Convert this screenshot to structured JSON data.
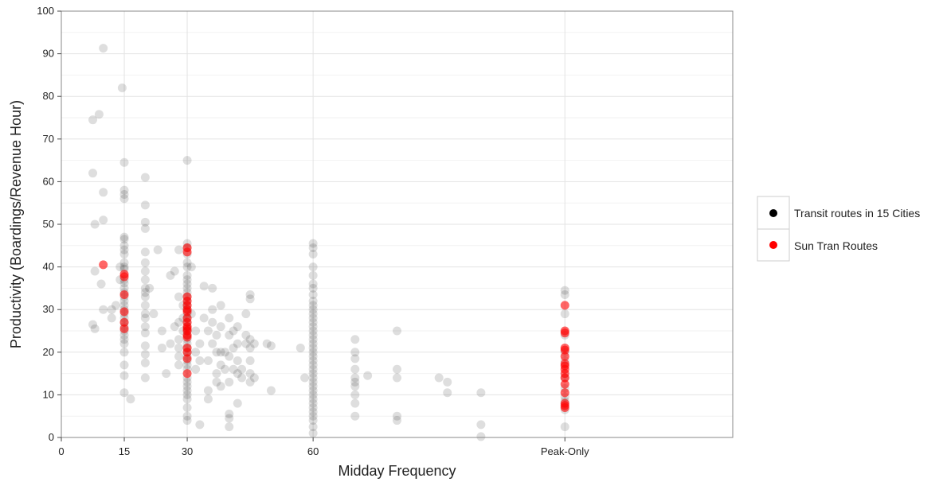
{
  "chart_data": {
    "type": "scatter",
    "title": "",
    "xlabel": "Midday Frequency",
    "ylabel": "Productivity (Boardings/Revenue Hour)",
    "xlim": [
      0,
      160
    ],
    "ylim": [
      0,
      100
    ],
    "x_ticks": [
      {
        "value": 0,
        "label": "0"
      },
      {
        "value": 15,
        "label": "15"
      },
      {
        "value": 30,
        "label": "30"
      },
      {
        "value": 60,
        "label": "60"
      },
      {
        "value": 120,
        "label": "Peak-Only"
      }
    ],
    "y_ticks": [
      0,
      10,
      20,
      30,
      40,
      50,
      60,
      70,
      80,
      90,
      100
    ],
    "grid": true,
    "legend_position": "right",
    "colors": {
      "transit": "#000000",
      "suntran": "#ff0000"
    },
    "series": [
      {
        "name": "Transit routes in 15 Cities",
        "color": "#000000",
        "points": [
          [
            7.5,
            74.5
          ],
          [
            9,
            75.8
          ],
          [
            10,
            91.3
          ],
          [
            7.5,
            62
          ],
          [
            8,
            50
          ],
          [
            10,
            57.5
          ],
          [
            10,
            51
          ],
          [
            8,
            39
          ],
          [
            9.5,
            36
          ],
          [
            10,
            30
          ],
          [
            7.5,
            26.5
          ],
          [
            8,
            25.5
          ],
          [
            12,
            30
          ],
          [
            13,
            31
          ],
          [
            12,
            28
          ],
          [
            14,
            40
          ],
          [
            14,
            37
          ],
          [
            14.5,
            82
          ],
          [
            15,
            64.5
          ],
          [
            15,
            58
          ],
          [
            15,
            57
          ],
          [
            15,
            56
          ],
          [
            15,
            47
          ],
          [
            15,
            46.5
          ],
          [
            15,
            45
          ],
          [
            15,
            44
          ],
          [
            15,
            43
          ],
          [
            15,
            41
          ],
          [
            15,
            40
          ],
          [
            15,
            39.5
          ],
          [
            15,
            37
          ],
          [
            15,
            36.2
          ],
          [
            15,
            35
          ],
          [
            15,
            34
          ],
          [
            15,
            33
          ],
          [
            15,
            32
          ],
          [
            15,
            31
          ],
          [
            15,
            30
          ],
          [
            15,
            29
          ],
          [
            15,
            28
          ],
          [
            15,
            27
          ],
          [
            15,
            26
          ],
          [
            15,
            25
          ],
          [
            15,
            24
          ],
          [
            15,
            23
          ],
          [
            15,
            22
          ],
          [
            15,
            20
          ],
          [
            15,
            17
          ],
          [
            15,
            14.5
          ],
          [
            15,
            10.5
          ],
          [
            16.5,
            9
          ],
          [
            20,
            61
          ],
          [
            20,
            54.5
          ],
          [
            20,
            50.5
          ],
          [
            20,
            49
          ],
          [
            20,
            43.5
          ],
          [
            20,
            41
          ],
          [
            20,
            39
          ],
          [
            20,
            37
          ],
          [
            20,
            35
          ],
          [
            20,
            34
          ],
          [
            20,
            33
          ],
          [
            20,
            31
          ],
          [
            20,
            29
          ],
          [
            20,
            28
          ],
          [
            20,
            26
          ],
          [
            20,
            24.5
          ],
          [
            20,
            21.5
          ],
          [
            20,
            19.5
          ],
          [
            20,
            17.5
          ],
          [
            20,
            14
          ],
          [
            21,
            35
          ],
          [
            22,
            29
          ],
          [
            23,
            44
          ],
          [
            24,
            25
          ],
          [
            24,
            21
          ],
          [
            25,
            15
          ],
          [
            26,
            38
          ],
          [
            26,
            22
          ],
          [
            27,
            39
          ],
          [
            27,
            26
          ],
          [
            28,
            44
          ],
          [
            28,
            33
          ],
          [
            28,
            27
          ],
          [
            28,
            23
          ],
          [
            28,
            21
          ],
          [
            28,
            19
          ],
          [
            28,
            17
          ],
          [
            29,
            31
          ],
          [
            29,
            28
          ],
          [
            29,
            25
          ],
          [
            30,
            65
          ],
          [
            30,
            45.5
          ],
          [
            30,
            44.5
          ],
          [
            30,
            43
          ],
          [
            30,
            41
          ],
          [
            30,
            40
          ],
          [
            30,
            38
          ],
          [
            30,
            37
          ],
          [
            30,
            36
          ],
          [
            30,
            35
          ],
          [
            30,
            34
          ],
          [
            30,
            33
          ],
          [
            30,
            32
          ],
          [
            30,
            31
          ],
          [
            30,
            30
          ],
          [
            30,
            29
          ],
          [
            30,
            28
          ],
          [
            30,
            27
          ],
          [
            30,
            26
          ],
          [
            30,
            25
          ],
          [
            30,
            24
          ],
          [
            30,
            23
          ],
          [
            30,
            22
          ],
          [
            30,
            21
          ],
          [
            30,
            20
          ],
          [
            30,
            19
          ],
          [
            30,
            18
          ],
          [
            30,
            17
          ],
          [
            30,
            16
          ],
          [
            30,
            14
          ],
          [
            30,
            13
          ],
          [
            30,
            12
          ],
          [
            30,
            11
          ],
          [
            30,
            10
          ],
          [
            30,
            9
          ],
          [
            30,
            7
          ],
          [
            30,
            5
          ],
          [
            30,
            4
          ],
          [
            31,
            40
          ],
          [
            31,
            29
          ],
          [
            32,
            25
          ],
          [
            32,
            20
          ],
          [
            32,
            16
          ],
          [
            33,
            22
          ],
          [
            33,
            18
          ],
          [
            33,
            3
          ],
          [
            34,
            35.5
          ],
          [
            34,
            28
          ],
          [
            35,
            25
          ],
          [
            35,
            18
          ],
          [
            35,
            11
          ],
          [
            35,
            9
          ],
          [
            36,
            30
          ],
          [
            36,
            35
          ],
          [
            36,
            27
          ],
          [
            36,
            22
          ],
          [
            37,
            24
          ],
          [
            37,
            20
          ],
          [
            37,
            15
          ],
          [
            37,
            13
          ],
          [
            38,
            31
          ],
          [
            38,
            26
          ],
          [
            38,
            20
          ],
          [
            38,
            17
          ],
          [
            38,
            12
          ],
          [
            39,
            20
          ],
          [
            39,
            16
          ],
          [
            40,
            28
          ],
          [
            40,
            24
          ],
          [
            40,
            19
          ],
          [
            40,
            13
          ],
          [
            40,
            5.5
          ],
          [
            40,
            4.5
          ],
          [
            40,
            2.5
          ],
          [
            41,
            25
          ],
          [
            41,
            21
          ],
          [
            41,
            16
          ],
          [
            42,
            26
          ],
          [
            42,
            22
          ],
          [
            42,
            18
          ],
          [
            42,
            15
          ],
          [
            42,
            8
          ],
          [
            43,
            16
          ],
          [
            43,
            14
          ],
          [
            44,
            29
          ],
          [
            44,
            24
          ],
          [
            44,
            22
          ],
          [
            45,
            33.5
          ],
          [
            45,
            32.5
          ],
          [
            45,
            23
          ],
          [
            45,
            21
          ],
          [
            45,
            18
          ],
          [
            45,
            15
          ],
          [
            45,
            13
          ],
          [
            46,
            22
          ],
          [
            46,
            14
          ],
          [
            49,
            22
          ],
          [
            50,
            21.5
          ],
          [
            50,
            11
          ],
          [
            57,
            21
          ],
          [
            58,
            14
          ],
          [
            60,
            45.5
          ],
          [
            60,
            44.5
          ],
          [
            60,
            43
          ],
          [
            60,
            40
          ],
          [
            60,
            38
          ],
          [
            60,
            36
          ],
          [
            60,
            35
          ],
          [
            60,
            33.5
          ],
          [
            60,
            32
          ],
          [
            60,
            31
          ],
          [
            60,
            30
          ],
          [
            60,
            29
          ],
          [
            60,
            28
          ],
          [
            60,
            27
          ],
          [
            60,
            26
          ],
          [
            60,
            25
          ],
          [
            60,
            24
          ],
          [
            60,
            23
          ],
          [
            60,
            22
          ],
          [
            60,
            21
          ],
          [
            60,
            20
          ],
          [
            60,
            19
          ],
          [
            60,
            18
          ],
          [
            60,
            17
          ],
          [
            60,
            16
          ],
          [
            60,
            15
          ],
          [
            60,
            14
          ],
          [
            60,
            13
          ],
          [
            60,
            12
          ],
          [
            60,
            11
          ],
          [
            60,
            10
          ],
          [
            60,
            9
          ],
          [
            60,
            8
          ],
          [
            60,
            7
          ],
          [
            60,
            6
          ],
          [
            60,
            5
          ],
          [
            60,
            4
          ],
          [
            60,
            2.5
          ],
          [
            60,
            1
          ],
          [
            70,
            23
          ],
          [
            70,
            20
          ],
          [
            70,
            18.5
          ],
          [
            70,
            16
          ],
          [
            70,
            14
          ],
          [
            70,
            13
          ],
          [
            70,
            12
          ],
          [
            70,
            10
          ],
          [
            70,
            8
          ],
          [
            70,
            5
          ],
          [
            73,
            14.5
          ],
          [
            80,
            25
          ],
          [
            80,
            16
          ],
          [
            80,
            14
          ],
          [
            80,
            5
          ],
          [
            80,
            4
          ],
          [
            90,
            14
          ],
          [
            92,
            13
          ],
          [
            92,
            10.5
          ],
          [
            100,
            10.5
          ],
          [
            100,
            3
          ],
          [
            100,
            0.2
          ],
          [
            120,
            34.5
          ],
          [
            120,
            33.5
          ],
          [
            120,
            29
          ],
          [
            120,
            24
          ],
          [
            120,
            20
          ],
          [
            120,
            18
          ],
          [
            120,
            14
          ],
          [
            120,
            11.5
          ],
          [
            120,
            9.5
          ],
          [
            120,
            8.5
          ],
          [
            120,
            6.5
          ],
          [
            120,
            2.5
          ]
        ]
      },
      {
        "name": "Sun Tran Routes",
        "color": "#ff0000",
        "points": [
          [
            10,
            40.5
          ],
          [
            15,
            38.3
          ],
          [
            15,
            37.7
          ],
          [
            15,
            33.5
          ],
          [
            15,
            29.5
          ],
          [
            15,
            27
          ],
          [
            15,
            25.5
          ],
          [
            30,
            44.5
          ],
          [
            30,
            43.5
          ],
          [
            30,
            33
          ],
          [
            30,
            32
          ],
          [
            30,
            31
          ],
          [
            30,
            30
          ],
          [
            30,
            29.5
          ],
          [
            30,
            28
          ],
          [
            30,
            27
          ],
          [
            30,
            26
          ],
          [
            30,
            25.5
          ],
          [
            30,
            25
          ],
          [
            30,
            24
          ],
          [
            30,
            23.5
          ],
          [
            30,
            21
          ],
          [
            30,
            20
          ],
          [
            30,
            18.5
          ],
          [
            30,
            15
          ],
          [
            120,
            31
          ],
          [
            120,
            25
          ],
          [
            120,
            24.5
          ],
          [
            120,
            21
          ],
          [
            120,
            20.5
          ],
          [
            120,
            19
          ],
          [
            120,
            17.3
          ],
          [
            120,
            16.8
          ],
          [
            120,
            16
          ],
          [
            120,
            15
          ],
          [
            120,
            14
          ],
          [
            120,
            12.5
          ],
          [
            120,
            10.5
          ],
          [
            120,
            8
          ],
          [
            120,
            7.5
          ],
          [
            120,
            7
          ]
        ]
      }
    ]
  }
}
